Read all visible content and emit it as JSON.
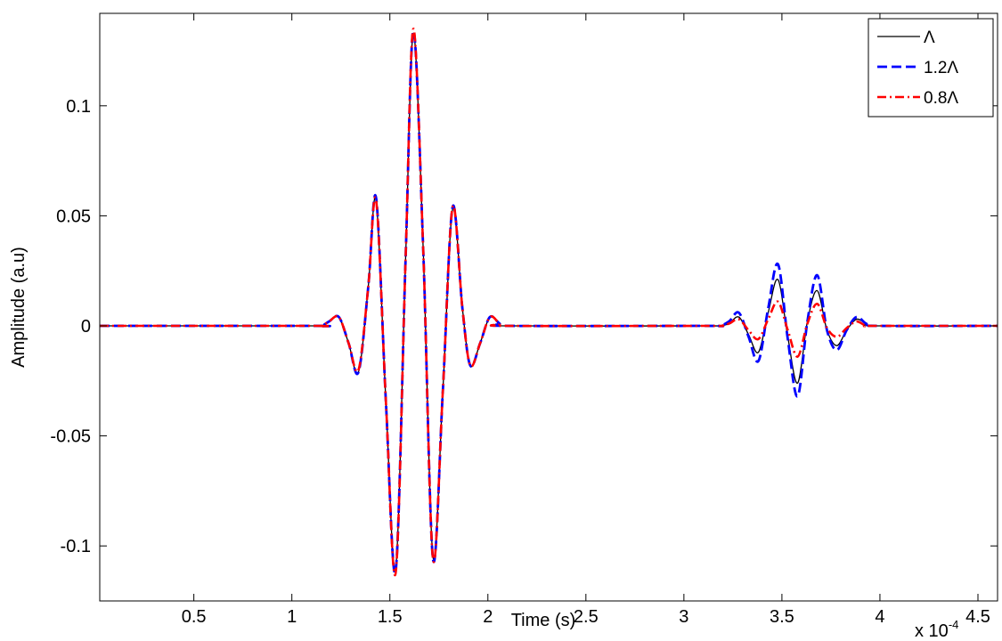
{
  "chart_data": {
    "type": "line",
    "title": "",
    "xlabel": "Time (s)",
    "ylabel": "Amplitude (a.u)",
    "x_multiplier_label": "x 10",
    "x_multiplier_exponent": "-4",
    "xlim": [
      0.02,
      4.6
    ],
    "ylim": [
      -0.125,
      0.142
    ],
    "x_ticks": [
      0.5,
      1,
      1.5,
      2,
      2.5,
      3,
      3.5,
      4,
      4.5
    ],
    "x_tick_labels": [
      "0.5",
      "1",
      "1.5",
      "2",
      "2.5",
      "3",
      "3.5",
      "4",
      "4.5"
    ],
    "y_ticks": [
      -0.1,
      -0.05,
      0,
      0.05,
      0.1
    ],
    "y_tick_labels": [
      "-0.1",
      "-0.05",
      "0",
      "0.05",
      "0.1"
    ],
    "grid": false,
    "legend_position": "top-right",
    "series": [
      {
        "name": "Λ",
        "color": "#000000",
        "dash": "solid",
        "x": [
          0.02,
          1.1,
          1.15,
          1.19,
          1.24,
          1.29,
          1.34,
          1.39,
          1.43,
          1.48,
          1.53,
          1.58,
          1.62,
          1.67,
          1.72,
          1.77,
          1.82,
          1.87,
          1.91,
          1.96,
          2.01,
          2.06,
          2.1,
          3.1,
          3.18,
          3.23,
          3.28,
          3.33,
          3.38,
          3.43,
          3.48,
          3.53,
          3.58,
          3.63,
          3.68,
          3.73,
          3.78,
          3.83,
          3.88,
          3.93,
          3.98,
          4.6
        ],
        "y": [
          0,
          0,
          0,
          0.002,
          0.004,
          -0.008,
          -0.021,
          0.018,
          0.057,
          -0.035,
          -0.11,
          0.03,
          0.133,
          0.035,
          -0.105,
          -0.03,
          0.053,
          0.008,
          -0.018,
          -0.008,
          0.004,
          0.001,
          0,
          0,
          0,
          0.001,
          0.004,
          -0.004,
          -0.012,
          0.006,
          0.021,
          -0.005,
          -0.026,
          0.002,
          0.016,
          -0.002,
          -0.009,
          -0.002,
          0.003,
          0.001,
          0,
          0
        ]
      },
      {
        "name": "1.2Λ",
        "color": "#0000ff",
        "dash": "dashed",
        "x": [
          0.02,
          1.1,
          1.15,
          1.19,
          1.24,
          1.29,
          1.34,
          1.39,
          1.43,
          1.48,
          1.53,
          1.58,
          1.62,
          1.67,
          1.72,
          1.77,
          1.82,
          1.87,
          1.91,
          1.96,
          2.01,
          2.06,
          2.1,
          3.1,
          3.18,
          3.23,
          3.28,
          3.33,
          3.38,
          3.43,
          3.48,
          3.53,
          3.58,
          3.63,
          3.68,
          3.73,
          3.78,
          3.83,
          3.88,
          3.93,
          3.98,
          4.6
        ],
        "y": [
          0,
          0,
          0,
          0.002,
          0.004,
          -0.008,
          -0.021,
          0.018,
          0.058,
          -0.035,
          -0.111,
          0.03,
          0.134,
          0.035,
          -0.106,
          -0.03,
          0.054,
          0.008,
          -0.018,
          -0.008,
          0.004,
          0.001,
          0,
          0,
          0,
          0.002,
          0.006,
          -0.005,
          -0.016,
          0.008,
          0.028,
          -0.006,
          -0.032,
          0.002,
          0.023,
          -0.002,
          -0.011,
          -0.002,
          0.004,
          0.001,
          0,
          0
        ]
      },
      {
        "name": "0.8Λ",
        "color": "#ff0000",
        "dash": "dashdot",
        "x": [
          0.02,
          1.1,
          1.15,
          1.19,
          1.24,
          1.29,
          1.34,
          1.39,
          1.43,
          1.48,
          1.53,
          1.58,
          1.62,
          1.67,
          1.72,
          1.77,
          1.82,
          1.87,
          1.91,
          1.96,
          2.01,
          2.06,
          2.1,
          3.1,
          3.18,
          3.23,
          3.28,
          3.33,
          3.38,
          3.43,
          3.48,
          3.53,
          3.58,
          3.63,
          3.68,
          3.73,
          3.78,
          3.83,
          3.88,
          3.93,
          3.98,
          4.6
        ],
        "y": [
          0,
          0,
          0,
          0.002,
          0.004,
          -0.008,
          -0.02,
          0.018,
          0.057,
          -0.035,
          -0.112,
          0.03,
          0.135,
          0.035,
          -0.106,
          -0.03,
          0.054,
          0.008,
          -0.018,
          -0.008,
          0.004,
          0.001,
          0,
          0,
          0,
          0.001,
          0.003,
          -0.002,
          -0.006,
          0.003,
          0.011,
          -0.002,
          -0.014,
          0.001,
          0.01,
          -0.001,
          -0.005,
          -0.001,
          0.002,
          0,
          0,
          0
        ]
      }
    ]
  }
}
